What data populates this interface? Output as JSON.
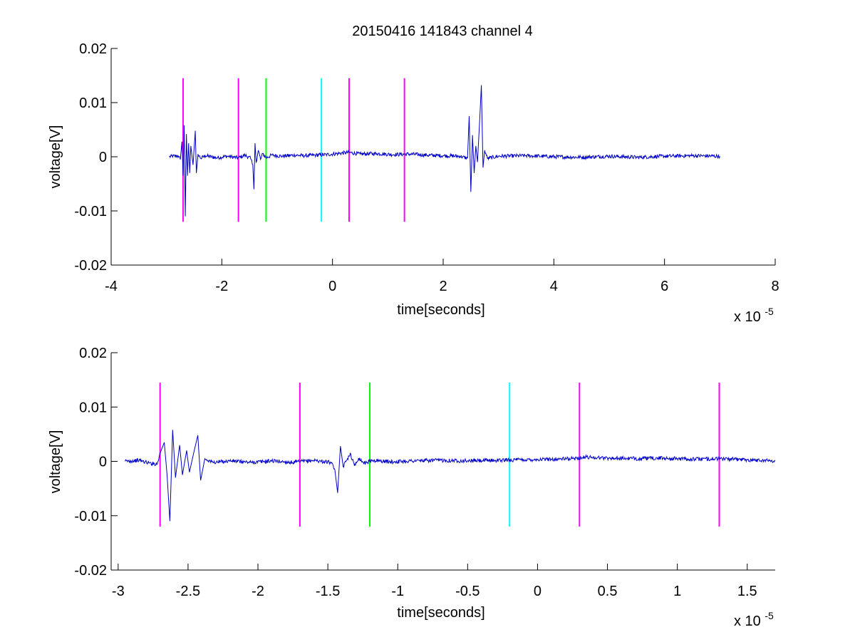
{
  "chart_data": [
    {
      "type": "line",
      "title": "20150416 141843 channel 4",
      "xlabel": "time[seconds]",
      "ylabel": "voltage[V]",
      "x_multiplier_label": "x 10",
      "x_multiplier_exponent": "-5",
      "xlim": [
        -4,
        8
      ],
      "ylim": [
        -0.02,
        0.02
      ],
      "x_ticks": [
        -4,
        -2,
        0,
        2,
        4,
        6,
        8
      ],
      "x_tick_labels": [
        "-4",
        "-2",
        "0",
        "2",
        "4",
        "6",
        "8"
      ],
      "y_ticks": [
        -0.02,
        -0.01,
        0,
        0.01,
        0.02
      ],
      "y_tick_labels": [
        "-0.02",
        "-0.01",
        "0",
        "0.01",
        "0.02"
      ],
      "grid": false,
      "series": [
        {
          "color": "#0000c8",
          "x_range": [
            -2.95,
            7.0
          ],
          "points": [
            [
              -2.95,
              0.0
            ],
            [
              -2.8,
              0.0002
            ],
            [
              -2.75,
              -0.0005
            ],
            [
              -2.72,
              0.0028
            ],
            [
              -2.7,
              -0.0035
            ],
            [
              -2.68,
              0.0058
            ],
            [
              -2.66,
              -0.011
            ],
            [
              -2.64,
              0.0042
            ],
            [
              -2.62,
              -0.0035
            ],
            [
              -2.6,
              0.0025
            ],
            [
              -2.58,
              -0.003
            ],
            [
              -2.56,
              0.002
            ],
            [
              -2.52,
              -0.0015
            ],
            [
              -2.48,
              0.0048
            ],
            [
              -2.46,
              -0.003
            ],
            [
              -2.43,
              0.0005
            ],
            [
              -2.38,
              -0.0003
            ],
            [
              -2.3,
              0.0002
            ],
            [
              -2.1,
              -0.0002
            ],
            [
              -1.9,
              0.0001
            ],
            [
              -1.7,
              -0.0002
            ],
            [
              -1.58,
              0.0003
            ],
            [
              -1.48,
              -0.0003
            ],
            [
              -1.44,
              -0.0015
            ],
            [
              -1.42,
              -0.006
            ],
            [
              -1.4,
              0.0025
            ],
            [
              -1.38,
              -0.001
            ],
            [
              -1.34,
              0.0012
            ],
            [
              -1.3,
              -0.0005
            ],
            [
              -1.26,
              0.0006
            ],
            [
              -1.2,
              -0.0002
            ],
            [
              -1.1,
              0.0003
            ],
            [
              -0.9,
              0.0001
            ],
            [
              -0.7,
              0.0003
            ],
            [
              -0.5,
              0.0002
            ],
            [
              -0.3,
              0.0003
            ],
            [
              -0.1,
              0.0004
            ],
            [
              0.1,
              0.0006
            ],
            [
              0.3,
              0.0008
            ],
            [
              0.5,
              0.0005
            ],
            [
              0.8,
              0.0006
            ],
            [
              1.1,
              0.0004
            ],
            [
              1.4,
              0.0005
            ],
            [
              1.7,
              0.0003
            ],
            [
              2.0,
              0.0002
            ],
            [
              2.3,
              0.0001
            ],
            [
              2.44,
              -0.0003
            ],
            [
              2.47,
              0.0075
            ],
            [
              2.5,
              -0.0065
            ],
            [
              2.53,
              0.004
            ],
            [
              2.56,
              -0.003
            ],
            [
              2.59,
              0.002
            ],
            [
              2.62,
              -0.001
            ],
            [
              2.66,
              0.0068
            ],
            [
              2.69,
              0.0132
            ],
            [
              2.72,
              -0.002
            ],
            [
              2.75,
              0.0012
            ],
            [
              2.8,
              -0.0003
            ],
            [
              3.0,
              0.0001
            ],
            [
              3.5,
              0.0002
            ],
            [
              4.0,
              0.0
            ],
            [
              4.5,
              -0.0001
            ],
            [
              5.0,
              0.0001
            ],
            [
              5.5,
              -0.0001
            ],
            [
              6.0,
              0.0001
            ],
            [
              6.5,
              0.0002
            ],
            [
              7.0,
              0.0001
            ]
          ]
        }
      ],
      "markers": [
        {
          "x": -2.7,
          "color": "#ff00ff"
        },
        {
          "x": -1.7,
          "color": "#ff00ff"
        },
        {
          "x": -1.2,
          "color": "#00ff00"
        },
        {
          "x": -0.2,
          "color": "#00ffff"
        },
        {
          "x": 0.3,
          "color": "#ff00ff"
        },
        {
          "x": 1.3,
          "color": "#ff00ff"
        }
      ],
      "marker_yrange": [
        -0.012,
        0.0145
      ]
    },
    {
      "type": "line",
      "title": "",
      "xlabel": "time[seconds]",
      "ylabel": "voltage[V]",
      "x_multiplier_label": "x 10",
      "x_multiplier_exponent": "-5",
      "xlim": [
        -3.05,
        1.7
      ],
      "ylim": [
        -0.02,
        0.02
      ],
      "x_ticks": [
        -3,
        -2.5,
        -2,
        -1.5,
        -1,
        -0.5,
        0,
        0.5,
        1,
        1.5
      ],
      "x_tick_labels": [
        "-3",
        "-2.5",
        "-2",
        "-1.5",
        "-1",
        "-0.5",
        "0",
        "0.5",
        "1",
        "1.5"
      ],
      "y_ticks": [
        -0.02,
        -0.01,
        0,
        0.01,
        0.02
      ],
      "y_tick_labels": [
        "-0.02",
        "-0.01",
        "0",
        "0.01",
        "0.02"
      ],
      "grid": false,
      "series": [
        {
          "color": "#0000c8",
          "x_range": [
            -2.95,
            1.7
          ],
          "points": [
            [
              -2.95,
              0.0
            ],
            [
              -2.85,
              0.0002
            ],
            [
              -2.78,
              -0.0003
            ],
            [
              -2.72,
              -0.0005
            ],
            [
              -2.7,
              0.0015
            ],
            [
              -2.67,
              0.0035
            ],
            [
              -2.65,
              -0.0025
            ],
            [
              -2.63,
              -0.011
            ],
            [
              -2.61,
              0.0058
            ],
            [
              -2.59,
              -0.003
            ],
            [
              -2.56,
              0.003
            ],
            [
              -2.54,
              -0.0025
            ],
            [
              -2.51,
              0.002
            ],
            [
              -2.49,
              -0.002
            ],
            [
              -2.46,
              0.0015
            ],
            [
              -2.43,
              0.0048
            ],
            [
              -2.41,
              -0.0035
            ],
            [
              -2.38,
              0.0005
            ],
            [
              -2.32,
              -0.0002
            ],
            [
              -2.2,
              0.0001
            ],
            [
              -2.05,
              -0.0002
            ],
            [
              -1.9,
              0.0001
            ],
            [
              -1.75,
              -0.0002
            ],
            [
              -1.6,
              0.0002
            ],
            [
              -1.48,
              -0.0002
            ],
            [
              -1.45,
              -0.0015
            ],
            [
              -1.43,
              -0.0058
            ],
            [
              -1.41,
              0.0028
            ],
            [
              -1.39,
              -0.001
            ],
            [
              -1.36,
              0.0005
            ],
            [
              -1.34,
              0.0015
            ],
            [
              -1.31,
              -0.0008
            ],
            [
              -1.28,
              0.0006
            ],
            [
              -1.24,
              -0.0003
            ],
            [
              -1.18,
              0.0002
            ],
            [
              -1.05,
              -0.0001
            ],
            [
              -0.9,
              0.0001
            ],
            [
              -0.7,
              0.0002
            ],
            [
              -0.5,
              0.0001
            ],
            [
              -0.3,
              0.0002
            ],
            [
              -0.1,
              0.0003
            ],
            [
              0.1,
              0.0004
            ],
            [
              0.25,
              0.0005
            ],
            [
              0.35,
              0.0008
            ],
            [
              0.5,
              0.0006
            ],
            [
              0.7,
              0.0005
            ],
            [
              0.9,
              0.0006
            ],
            [
              1.1,
              0.0004
            ],
            [
              1.3,
              0.0005
            ],
            [
              1.5,
              0.0003
            ],
            [
              1.7,
              0.0001
            ]
          ]
        }
      ],
      "markers": [
        {
          "x": -2.7,
          "color": "#ff00ff"
        },
        {
          "x": -1.7,
          "color": "#ff00ff"
        },
        {
          "x": -1.2,
          "color": "#00ff00"
        },
        {
          "x": -0.2,
          "color": "#00ffff"
        },
        {
          "x": 0.3,
          "color": "#ff00ff"
        },
        {
          "x": 1.3,
          "color": "#ff00ff"
        }
      ],
      "marker_yrange": [
        -0.012,
        0.0145
      ]
    }
  ]
}
